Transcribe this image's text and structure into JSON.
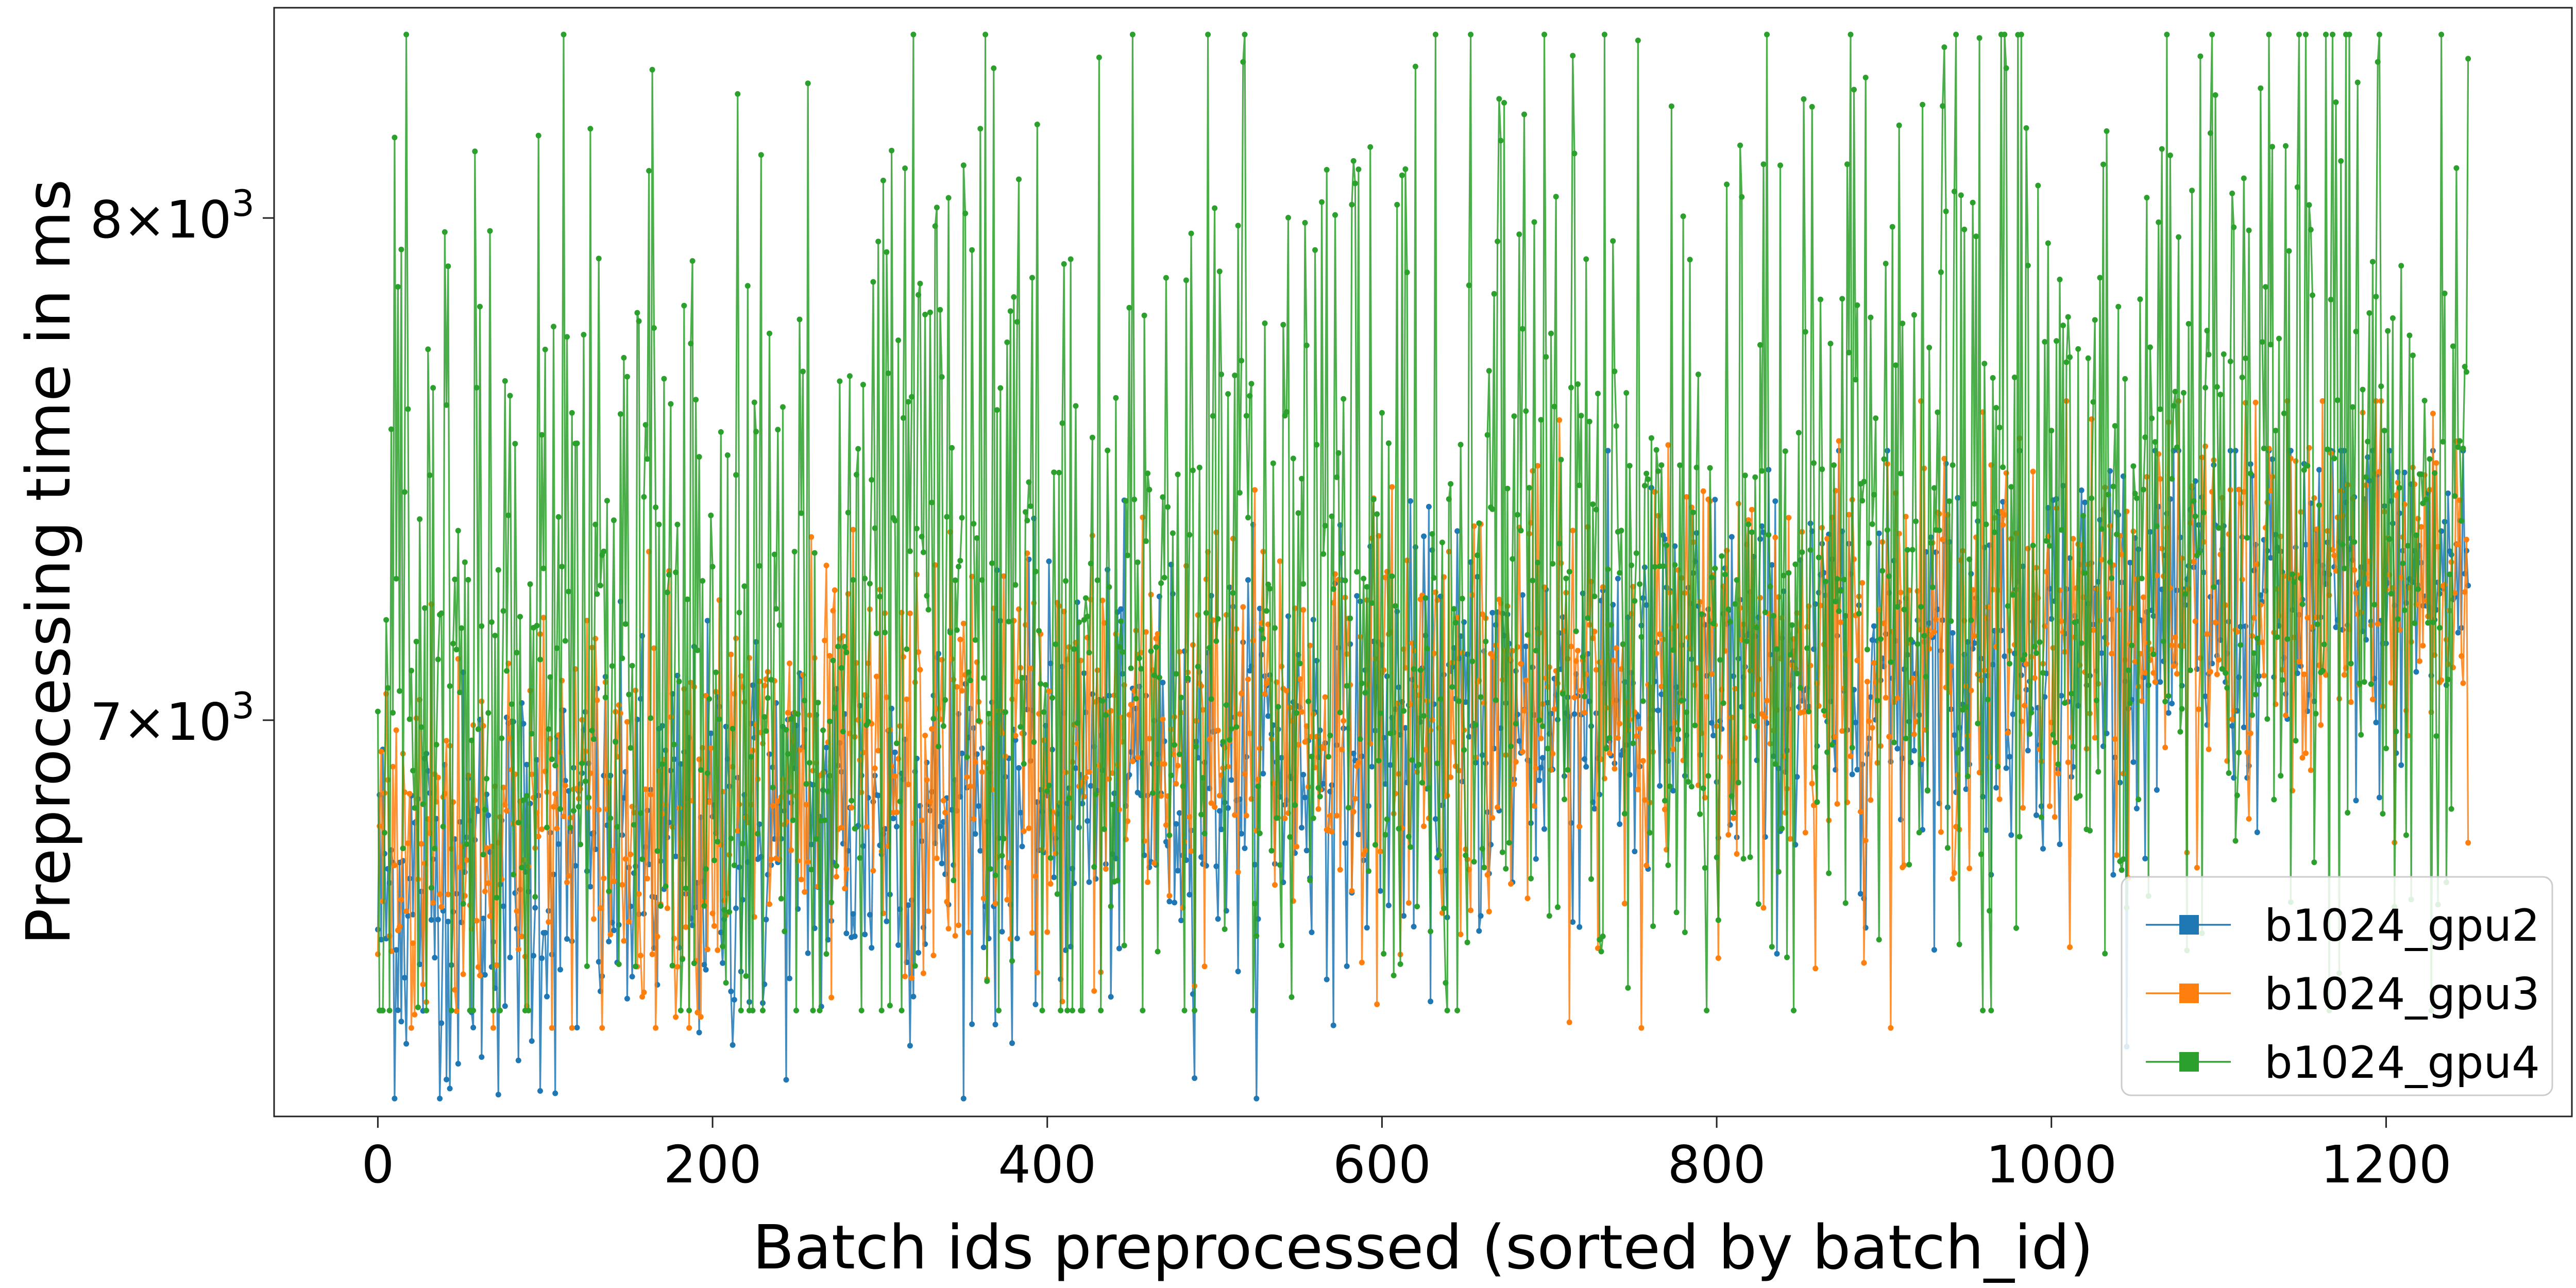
{
  "chart_data": {
    "type": "line",
    "title": "",
    "xlabel": "Batch ids preprocessed (sorted by batch_id)",
    "ylabel": "Preprocessing time in ms",
    "yscale": "log",
    "xlim": [
      -62,
      1311
    ],
    "ylim": [
      6300,
      8460
    ],
    "x_ticks": [
      0,
      200,
      400,
      600,
      800,
      1000,
      1200
    ],
    "x_tick_labels": [
      "0",
      "200",
      "400",
      "600",
      "800",
      "1000",
      "1200"
    ],
    "y_ticks": [
      {
        "value": 8000,
        "mantissa": "8",
        "base": "10",
        "exponent": "3"
      },
      {
        "value": 7000,
        "mantissa": "7",
        "base": "10",
        "exponent": "3"
      }
    ],
    "times_symbol": "×",
    "grid": false,
    "legend_position": "bottom-right",
    "n_points": 1250,
    "series": [
      {
        "name": "b1024_gpu2",
        "color": "#1f77b4",
        "trend_start": 6680,
        "trend_end": 7280,
        "noise_sd": 190,
        "min": 6330,
        "max": 7520
      },
      {
        "name": "b1024_gpu3",
        "color": "#ff7f0e",
        "trend_start": 6780,
        "trend_end": 7270,
        "noise_sd": 200,
        "min": 6450,
        "max": 7620
      },
      {
        "name": "b1024_gpu4",
        "color": "#2ca02c",
        "trend_start": 6990,
        "trend_end": 7380,
        "noise_sd": 390,
        "min": 6480,
        "max": 8400
      }
    ]
  }
}
